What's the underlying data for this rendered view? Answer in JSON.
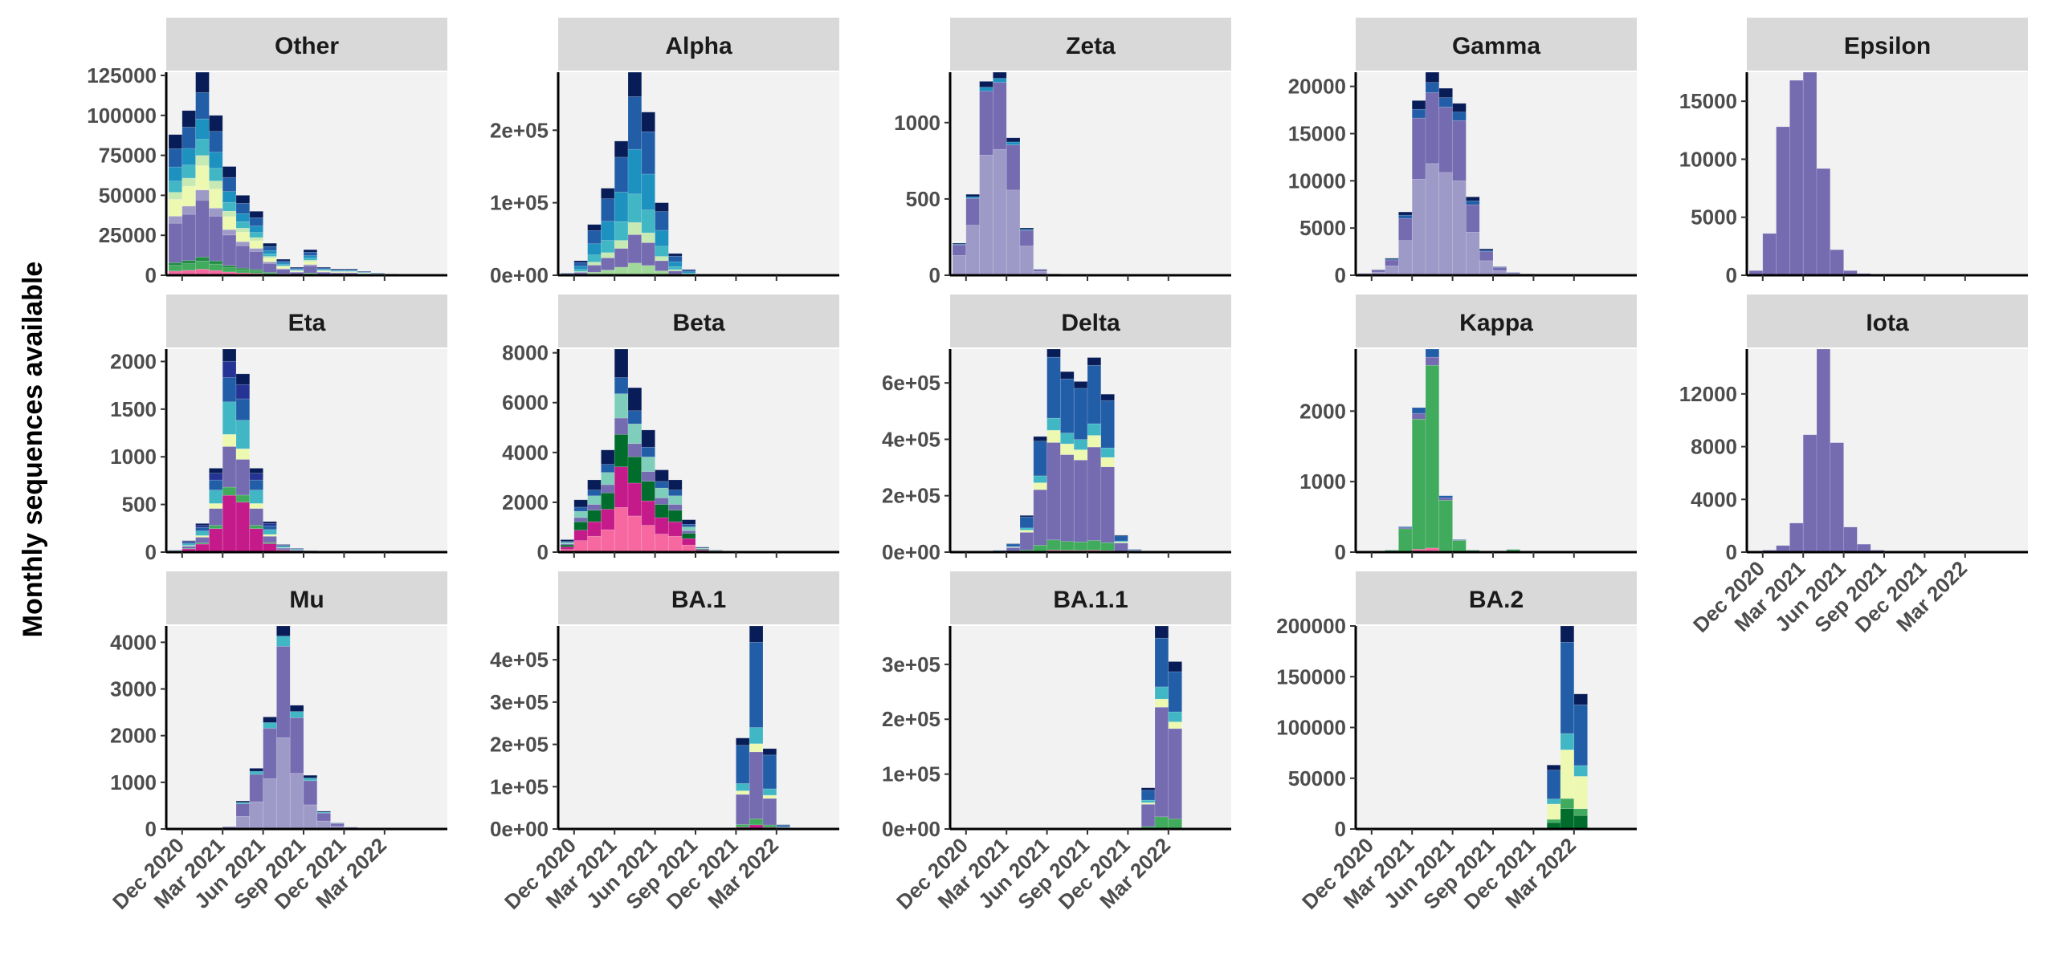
{
  "y_axis_title": "Monthly sequences available",
  "x_tick_labels": [
    "Dec 2020",
    "Mar 2021",
    "Jun 2021",
    "Sep 2021",
    "Dec 2021",
    "Mar 2022"
  ],
  "colors": {
    "panel_bg": "#f2f2f2",
    "strip_bg": "#d9d9d9",
    "stack": [
      "#f768a1",
      "#c51b8a",
      "#238b45",
      "#41ab5d",
      "#006d2c",
      "#a1d99b",
      "#756bb1",
      "#9e9ac8",
      "#edf8b1",
      "#c7e9b4",
      "#7fcdbb",
      "#41b6c4",
      "#1d91c0",
      "#225ea8",
      "#253494",
      "#081d58"
    ]
  },
  "chart_data": {
    "type": "bar",
    "stacked": true,
    "layout": "facet-grid 3x5",
    "ylabel": "Monthly sequences available",
    "x_months": [
      "Nov 2020",
      "Dec 2020",
      "Jan 2021",
      "Feb 2021",
      "Mar 2021",
      "Apr 2021",
      "May 2021",
      "Jun 2021",
      "Jul 2021",
      "Aug 2021",
      "Sep 2021",
      "Oct 2021",
      "Nov 2021",
      "Dec 2021",
      "Jan 2022",
      "Feb 2022",
      "Mar 2022"
    ],
    "x_ticks": [
      "Dec 2020",
      "Mar 2021",
      "Jun 2021",
      "Sep 2021",
      "Dec 2021",
      "Mar 2022"
    ],
    "panels": [
      {
        "title": "Other",
        "yticks": [
          0,
          25000,
          50000,
          75000,
          100000,
          125000
        ],
        "ytick_labels": [
          "0",
          "25000",
          "50000",
          "75000",
          "100000",
          "125000"
        ],
        "ymax": 127000,
        "totals": [
          88000,
          103000,
          127000,
          100000,
          68000,
          50000,
          40000,
          20000,
          10000,
          5000,
          16000,
          5000,
          4000,
          4000,
          2500,
          1500,
          800
        ],
        "palette": "other"
      },
      {
        "title": "Alpha",
        "yticks": [
          0,
          100000,
          200000
        ],
        "ytick_labels": [
          "0e+00",
          "1e+05",
          "2e+05"
        ],
        "ymax": 280000,
        "totals": [
          3000,
          20000,
          70000,
          120000,
          185000,
          280000,
          225000,
          100000,
          30000,
          8000,
          1500,
          500,
          200,
          100,
          0,
          0,
          0
        ],
        "palette": "alpha"
      },
      {
        "title": "Zeta",
        "yticks": [
          0,
          500,
          1000
        ],
        "ytick_labels": [
          "0",
          "500",
          "1000"
        ],
        "ymax": 1330,
        "totals": [
          210,
          530,
          1270,
          1330,
          900,
          310,
          40,
          10,
          5,
          3,
          5,
          3,
          2,
          2,
          0,
          0,
          0
        ],
        "palette": "zeta"
      },
      {
        "title": "Gamma",
        "yticks": [
          0,
          5000,
          10000,
          15000,
          20000
        ],
        "ytick_labels": [
          "0",
          "5000",
          "10000",
          "15000",
          "20000"
        ],
        "ymax": 21500,
        "totals": [
          200,
          600,
          1800,
          6700,
          18500,
          21500,
          19800,
          18200,
          8300,
          2800,
          900,
          300,
          150,
          80,
          0,
          0,
          0
        ],
        "palette": "gamma"
      },
      {
        "title": "Epsilon",
        "yticks": [
          0,
          5000,
          10000,
          15000
        ],
        "ytick_labels": [
          "0",
          "5000",
          "10000",
          "15000"
        ],
        "ymax": 17500,
        "totals": [
          400,
          3600,
          12800,
          16800,
          17500,
          9200,
          2200,
          400,
          150,
          100,
          50,
          0,
          0,
          0,
          0,
          0,
          0
        ],
        "palette": "epsilon"
      },
      {
        "title": "Eta",
        "yticks": [
          0,
          500,
          1000,
          1500,
          2000
        ],
        "ytick_labels": [
          "0",
          "500",
          "1000",
          "1500",
          "2000"
        ],
        "ymax": 2130,
        "totals": [
          20,
          120,
          300,
          880,
          2130,
          1870,
          880,
          320,
          80,
          40,
          15,
          5,
          0,
          0,
          0,
          0,
          0
        ],
        "palette": "eta"
      },
      {
        "title": "Beta",
        "yticks": [
          0,
          2000,
          4000,
          6000,
          8000
        ],
        "ytick_labels": [
          "0",
          "2000",
          "4000",
          "6000",
          "8000"
        ],
        "ymax": 8150,
        "totals": [
          500,
          2100,
          2900,
          4100,
          8150,
          6600,
          4900,
          3300,
          2900,
          1300,
          200,
          80,
          40,
          20,
          0,
          0,
          0
        ],
        "palette": "beta"
      },
      {
        "title": "Delta",
        "yticks": [
          0,
          200000,
          400000,
          600000
        ],
        "ytick_labels": [
          "0e+00",
          "2e+05",
          "4e+05",
          "6e+05"
        ],
        "ymax": 720000,
        "totals": [
          500,
          1000,
          2000,
          6000,
          30000,
          130000,
          410000,
          720000,
          640000,
          605000,
          690000,
          560000,
          60000,
          10000,
          3000,
          1000,
          500
        ],
        "palette": "delta"
      },
      {
        "title": "Kappa",
        "yticks": [
          0,
          1000,
          2000
        ],
        "ytick_labels": [
          "0",
          "1000",
          "2000"
        ],
        "ymax": 2880,
        "totals": [
          5,
          15,
          30,
          360,
          2050,
          2880,
          800,
          180,
          30,
          15,
          10,
          40,
          5,
          0,
          0,
          0,
          0
        ],
        "palette": "kappa"
      },
      {
        "title": "Iota",
        "yticks": [
          0,
          4000,
          8000,
          12000
        ],
        "ytick_labels": [
          "0",
          "4000",
          "8000",
          "12000"
        ],
        "ymax": 15400,
        "totals": [
          0,
          150,
          500,
          2200,
          8900,
          15400,
          8300,
          1900,
          600,
          150,
          80,
          50,
          30,
          20,
          10,
          5,
          0
        ],
        "palette": "iota"
      },
      {
        "title": "Mu",
        "yticks": [
          0,
          1000,
          2000,
          3000,
          4000
        ],
        "ytick_labels": [
          "0",
          "1000",
          "2000",
          "3000",
          "4000"
        ],
        "ymax": 4350,
        "totals": [
          0,
          0,
          0,
          0,
          50,
          600,
          1300,
          2400,
          4350,
          2650,
          1150,
          380,
          130,
          40,
          20,
          5,
          0
        ],
        "palette": "mu"
      },
      {
        "title": "BA.1",
        "yticks": [
          0,
          100000,
          200000,
          300000,
          400000
        ],
        "ytick_labels": [
          "0e+00",
          "1e+05",
          "2e+05",
          "3e+05",
          "4e+05"
        ],
        "ymax": 480000,
        "totals": [
          0,
          0,
          0,
          0,
          0,
          0,
          0,
          0,
          0,
          0,
          0,
          0,
          0,
          215000,
          480000,
          190000,
          10000
        ],
        "palette": "ba1"
      },
      {
        "title": "BA.1.1",
        "yticks": [
          0,
          100000,
          200000,
          300000
        ],
        "ytick_labels": [
          "0e+00",
          "1e+05",
          "2e+05",
          "3e+05"
        ],
        "ymax": 370000,
        "totals": [
          0,
          0,
          0,
          0,
          0,
          0,
          0,
          0,
          0,
          0,
          0,
          0,
          0,
          0,
          75000,
          370000,
          305000
        ],
        "palette": "ba11",
        "last_partial": 35000
      },
      {
        "title": "BA.2",
        "yticks": [
          0,
          50000,
          100000,
          150000,
          200000
        ],
        "ytick_labels": [
          "0",
          "50000",
          "100000",
          "150000",
          "200000"
        ],
        "ymax": 200000,
        "totals": [
          0,
          0,
          0,
          0,
          0,
          0,
          0,
          0,
          0,
          0,
          0,
          0,
          0,
          0,
          63000,
          200000,
          133000
        ],
        "palette": "ba2"
      }
    ]
  }
}
